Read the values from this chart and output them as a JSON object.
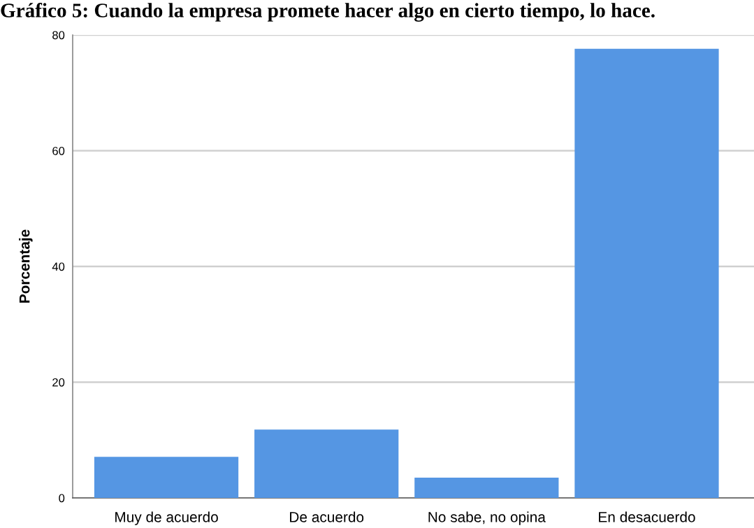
{
  "chart_data": {
    "type": "bar",
    "title": "Gráfico 5: Cuando la empresa promete hacer algo en cierto tiempo, lo hace.",
    "ylabel": "Porcentaje",
    "categories": [
      "Muy de acuerdo",
      "De acuerdo",
      "No sabe, no opina",
      "En desacuerdo"
    ],
    "values": [
      7.1,
      11.8,
      3.5,
      77.6
    ],
    "color": "#5596e3",
    "ylim": [
      0,
      80
    ],
    "yticks": [
      0,
      20,
      40,
      60,
      80
    ],
    "grid": "y"
  }
}
